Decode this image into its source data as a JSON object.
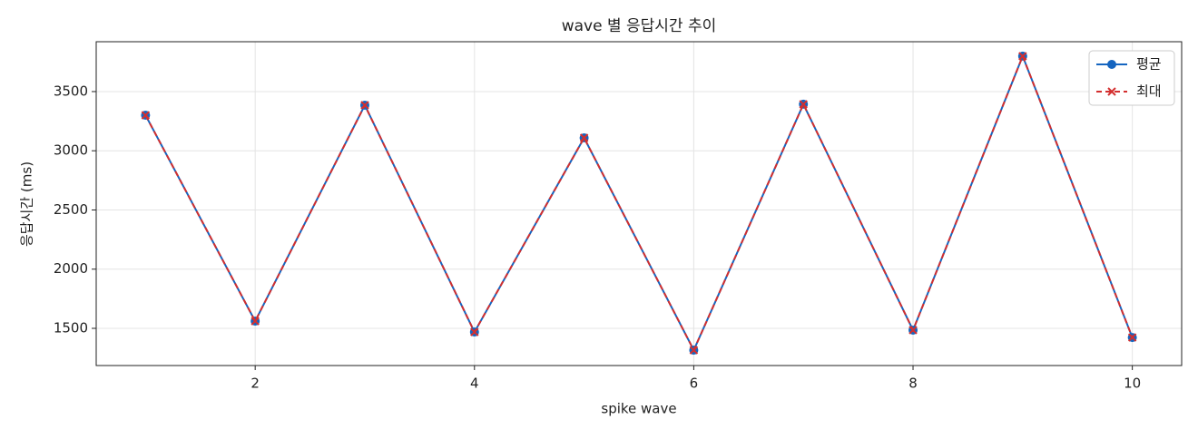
{
  "chart_data": {
    "type": "line",
    "title": "wave 별 응답시간 추이",
    "xlabel": "spike wave",
    "ylabel": "응답시간 (ms)",
    "x": [
      1,
      2,
      3,
      4,
      5,
      6,
      7,
      8,
      9,
      10
    ],
    "series": [
      {
        "name": "평균",
        "color": "#1565c0",
        "marker": "o",
        "dash": false,
        "values": [
          3300,
          1561,
          3385,
          1469,
          3109,
          1316,
          3393,
          1485,
          3799,
          1423
        ]
      },
      {
        "name": "최대",
        "color": "#d32f2f",
        "marker": "x",
        "dash": true,
        "values": [
          3300,
          1561,
          3385,
          1469,
          3109,
          1316,
          3393,
          1485,
          3799,
          1423
        ]
      }
    ],
    "xlim": [
      0.55,
      10.45
    ],
    "ylim": [
      1186,
      3921
    ],
    "xticks": [
      2,
      4,
      6,
      8,
      10
    ],
    "yticks": [
      1500,
      2000,
      2500,
      3000,
      3500
    ],
    "grid": true,
    "legend": "upper right"
  }
}
